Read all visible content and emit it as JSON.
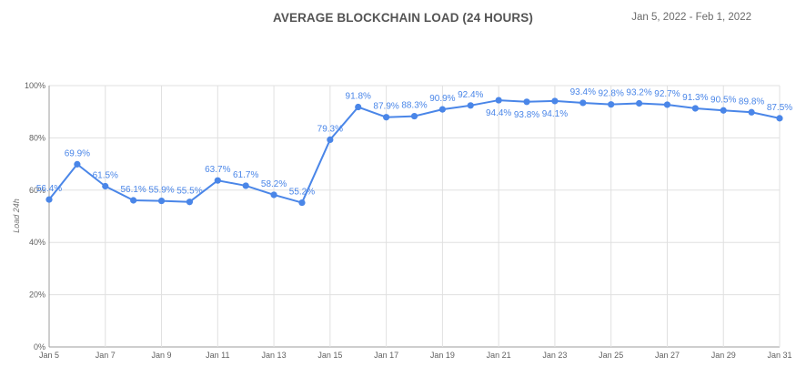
{
  "header": {
    "title": "AVERAGE BLOCKCHAIN LOAD (24 HOURS)",
    "date_range": "Jan 5, 2022 - Feb 1, 2022"
  },
  "chart_data": {
    "type": "line",
    "title": "AVERAGE BLOCKCHAIN LOAD (24 HOURS)",
    "xlabel": "",
    "ylabel": "Load 24h",
    "ylim": [
      0,
      100
    ],
    "y_ticks": [
      "0%",
      "20%",
      "40%",
      "60%",
      "80%",
      "100%"
    ],
    "x": [
      "Jan 5",
      "Jan 6",
      "Jan 7",
      "Jan 8",
      "Jan 9",
      "Jan 10",
      "Jan 11",
      "Jan 12",
      "Jan 13",
      "Jan 14",
      "Jan 15",
      "Jan 16",
      "Jan 17",
      "Jan 18",
      "Jan 19",
      "Jan 20",
      "Jan 21",
      "Jan 22",
      "Jan 23",
      "Jan 24",
      "Jan 25",
      "Jan 26",
      "Jan 27",
      "Jan 28",
      "Jan 29",
      "Jan 30",
      "Jan 31"
    ],
    "x_tick_labels": [
      "Jan 5",
      "Jan 7",
      "Jan 9",
      "Jan 11",
      "Jan 13",
      "Jan 15",
      "Jan 17",
      "Jan 19",
      "Jan 21",
      "Jan 23",
      "Jan 25",
      "Jan 27",
      "Jan 29",
      "Jan 31"
    ],
    "series": [
      {
        "values": [
          56.4,
          69.9,
          61.5,
          56.1,
          55.9,
          55.5,
          63.7,
          61.7,
          58.2,
          55.2,
          79.3,
          91.8,
          87.9,
          88.3,
          90.9,
          92.4,
          94.4,
          93.8,
          94.1,
          93.4,
          92.8,
          93.2,
          92.7,
          91.3,
          90.5,
          89.8,
          87.5
        ],
        "data_labels": [
          "56.4%",
          "69.9%",
          "61.5%",
          "56.1%",
          "55.9%",
          "55.5%",
          "63.7%",
          "61.7%",
          "58.2%",
          "55.2%",
          "79.3%",
          "91.8%",
          "87.9%",
          "88.3%",
          "90.9%",
          "92.4%",
          "94.4%",
          "93.8%",
          "94.1%",
          "93.4%",
          "92.8%",
          "93.2%",
          "92.7%",
          "91.3%",
          "90.5%",
          "89.8%",
          "87.5%"
        ],
        "label_below": [
          false,
          false,
          false,
          false,
          false,
          false,
          false,
          false,
          false,
          false,
          false,
          false,
          false,
          false,
          false,
          false,
          true,
          true,
          true,
          false,
          false,
          false,
          false,
          false,
          false,
          false,
          false
        ]
      }
    ],
    "grid": true,
    "legend": "none",
    "colors": {
      "line": "#4a86e8",
      "grid": "#e0e0e0",
      "axis": "#9e9e9e"
    }
  }
}
